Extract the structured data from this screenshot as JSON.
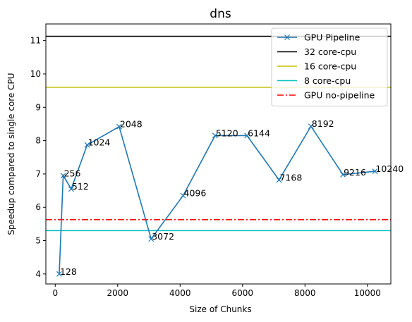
{
  "chart_data": {
    "type": "line",
    "title": "dns",
    "xlabel": "Size of Chunks",
    "ylabel": "Speedup compared to single core CPU",
    "xlim": [
      -300,
      10750
    ],
    "ylim": [
      3.7,
      11.5
    ],
    "xticks": [
      0,
      2000,
      4000,
      6000,
      8000,
      10000
    ],
    "yticks": [
      4,
      5,
      6,
      7,
      8,
      9,
      10,
      11
    ],
    "grid": false,
    "legend_position": "top-right",
    "series": [
      {
        "name": "GPU Pipeline",
        "color": "#1f77b4",
        "marker": "x",
        "x": [
          128,
          256,
          512,
          1024,
          2048,
          3072,
          4096,
          5120,
          6144,
          7168,
          8192,
          9216,
          10240
        ],
        "y": [
          4.0,
          6.95,
          6.55,
          7.87,
          8.42,
          5.05,
          6.35,
          8.15,
          8.15,
          6.82,
          8.43,
          6.98,
          7.08
        ],
        "point_labels": [
          "128",
          "256",
          "512",
          "1024",
          "2048",
          "3072",
          "4096",
          "5120",
          "6144",
          "7168",
          "8192",
          "9216",
          "10240"
        ]
      },
      {
        "name": "32 core-cpu",
        "color": "#000000",
        "style": "solid",
        "hline": 11.13
      },
      {
        "name": "16 core-cpu",
        "color": "#bfbf00",
        "style": "solid",
        "hline": 9.6
      },
      {
        "name": "8 core-cpu",
        "color": "#00bfbf",
        "style": "solid",
        "hline": 5.3
      },
      {
        "name": "GPU no-pipeline",
        "color": "#ff0000",
        "style": "dashdot",
        "hline": 5.63
      }
    ]
  }
}
